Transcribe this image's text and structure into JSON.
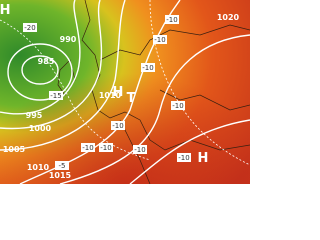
{
  "isobar_labels": [
    "990",
    "985",
    "995",
    "1000",
    "1005",
    "1010",
    "1015",
    "1010",
    "1020"
  ],
  "pressure_centers": [
    "H",
    "H",
    "T",
    "H"
  ],
  "temperature_labels": [
    "-20",
    "-15",
    "-10",
    "-10",
    "-10",
    "-10",
    "-10",
    "-10",
    "-10",
    "-10",
    "-5",
    "-10"
  ]
}
